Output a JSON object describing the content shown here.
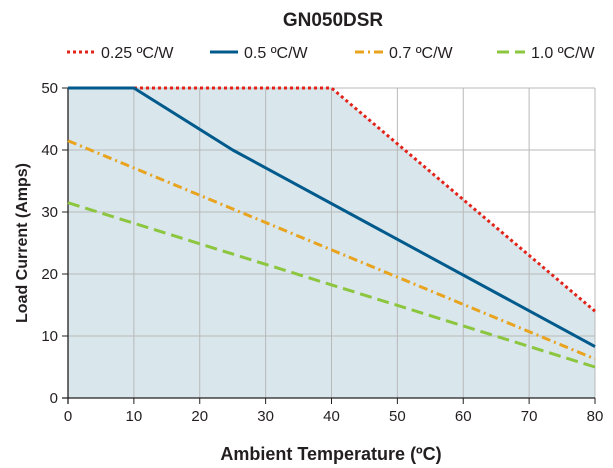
{
  "chart_data": {
    "type": "line",
    "title": "GN050DSR",
    "xlabel": "Ambient Temperature (ºC)",
    "ylabel": "Load Current (Amps)",
    "xlim": [
      0,
      80
    ],
    "ylim": [
      0,
      50
    ],
    "xticks": [
      0,
      10,
      20,
      30,
      40,
      50,
      60,
      70,
      80
    ],
    "yticks": [
      0,
      10,
      20,
      30,
      40,
      50
    ],
    "grid": true,
    "legend_position": "top",
    "shaded_area": {
      "color": "#d9e6ec",
      "under_series": "0.25 ºC/W"
    },
    "series": [
      {
        "name": "0.25 ºC/W",
        "color": "#e2231a",
        "style": "dotted",
        "x": [
          0,
          40,
          80
        ],
        "y": [
          50,
          50,
          14
        ]
      },
      {
        "name": "0.5 ºC/W",
        "color": "#005a8c",
        "style": "solid",
        "x": [
          0,
          10,
          25,
          80
        ],
        "y": [
          50,
          50,
          40,
          8.3
        ]
      },
      {
        "name": "0.7 ºC/W",
        "color": "#e8a31f",
        "style": "dashdot",
        "x": [
          0,
          80
        ],
        "y": [
          41.5,
          6.3
        ]
      },
      {
        "name": "1.0 ºC/W",
        "color": "#8cc63f",
        "style": "dashed",
        "x": [
          0,
          80
        ],
        "y": [
          31.5,
          5
        ]
      }
    ]
  }
}
